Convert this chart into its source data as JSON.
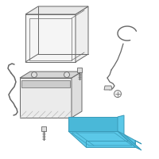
{
  "bg_color": "#ffffff",
  "line_color": "#666666",
  "highlight_color": "#5bc8e8",
  "highlight_edge": "#3a9ab8",
  "fig_size": [
    2.0,
    2.0
  ],
  "dpi": 100
}
